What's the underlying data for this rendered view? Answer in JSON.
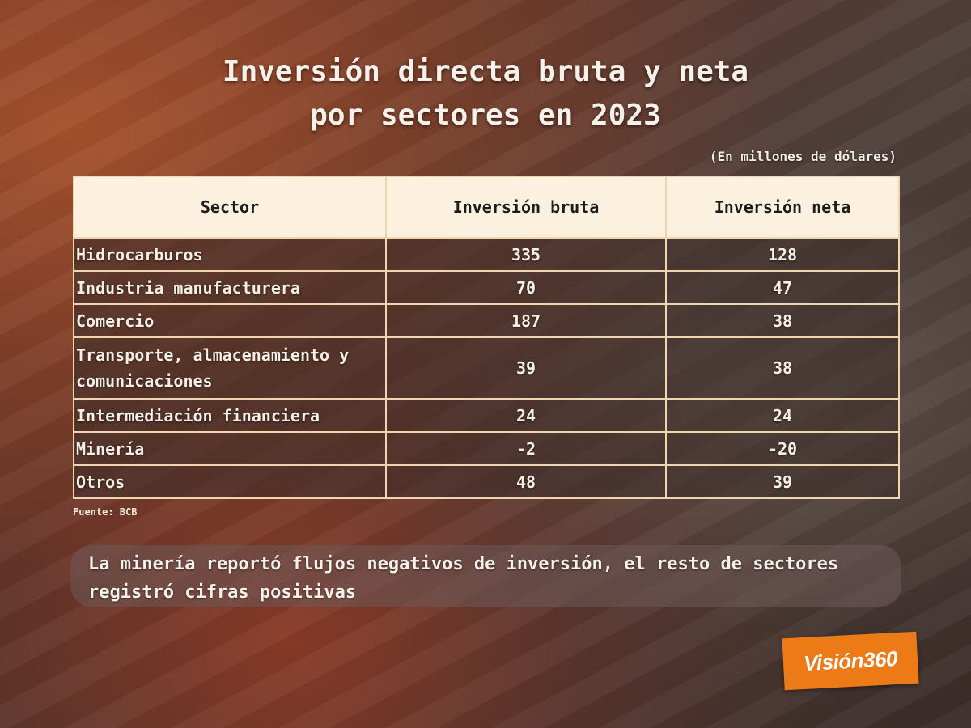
{
  "title_lines": [
    "Inversión directa bruta y neta",
    "por sectores en 2023"
  ],
  "unit_note": "(En millones de dólares)",
  "source": "Fuente: BCB",
  "caption": "La minería reportó flujos negativos de inversión, el resto de sectores registró cifras positivas",
  "logo_text": "Visión360",
  "chart_data": {
    "type": "table",
    "title": "Inversión directa bruta y neta por sectores en 2023",
    "subtitle": "(En millones de dólares)",
    "columns": [
      "Sector",
      "Inversión bruta",
      "Inversión neta"
    ],
    "rows": [
      [
        "Hidrocarburos",
        "335",
        "128"
      ],
      [
        "Industria manufacturera",
        "70",
        "47"
      ],
      [
        "Comercio",
        "187",
        "38"
      ],
      [
        "Transporte, almacenamiento y comunicaciones",
        "39",
        "38"
      ],
      [
        "Intermediación financiera",
        "24",
        "24"
      ],
      [
        "Minería",
        "-2",
        "-20"
      ],
      [
        "Otros",
        "48",
        "39"
      ]
    ]
  },
  "colors": {
    "header_bg": "#fbf1de",
    "border": "#f0d6b0",
    "logo_bg": "#ec7a17"
  }
}
